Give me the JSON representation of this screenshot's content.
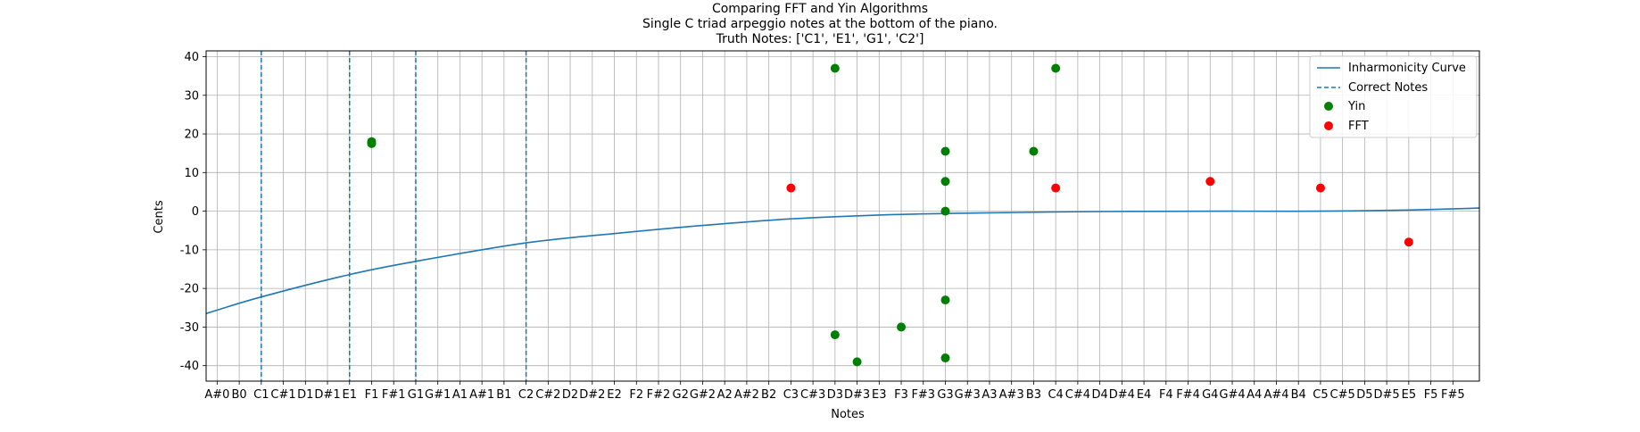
{
  "chart_data": {
    "type": "scatter",
    "title_lines": [
      "Comparing FFT and Yin Algorithms",
      "Single C triad arpeggio notes at the bottom of the piano.",
      "Truth Notes: ['C1', 'E1', 'G1', 'C2']"
    ],
    "xlabel": "Notes",
    "ylabel": "Cents",
    "xlim": [
      -0.5,
      57.2
    ],
    "ylim": [
      -44,
      41.5
    ],
    "grid": true,
    "legend_position": "upper right",
    "x_tick_labels": [
      "A#0",
      "B0",
      "C1",
      "C#1",
      "D1",
      "D#1",
      "E1",
      "F1",
      "F#1",
      "G1",
      "G#1",
      "A1",
      "A#1",
      "B1",
      "C2",
      "C#2",
      "D2",
      "D#2",
      "E2",
      "F2",
      "F#2",
      "G2",
      "G#2",
      "A2",
      "A#2",
      "B2",
      "C3",
      "C#3",
      "D3",
      "D#3",
      "E3",
      "F3",
      "F#3",
      "G3",
      "G#3",
      "A3",
      "A#3",
      "B3",
      "C4",
      "C#4",
      "D4",
      "D#4",
      "E4",
      "F4",
      "F#4",
      "G4",
      "G#4",
      "A4",
      "A#4",
      "B4",
      "C5",
      "C#5",
      "D5",
      "D#5",
      "E5",
      "F5",
      "F#5"
    ],
    "y_ticks": [
      -40,
      -30,
      -20,
      -10,
      0,
      10,
      20,
      30,
      40
    ],
    "inharmonicity_curve": {
      "name": "Inharmonicity Curve",
      "color": "#1f77b4",
      "x": [
        -0.5,
        2,
        6,
        9,
        14,
        18,
        22,
        26,
        30,
        34,
        40,
        46,
        50,
        54,
        57.2
      ],
      "y": [
        -26.5,
        -22.2,
        -16.4,
        -13.0,
        -8.2,
        -5.8,
        -3.7,
        -2.0,
        -1.0,
        -0.5,
        -0.1,
        0.0,
        0.0,
        0.3,
        0.8
      ]
    },
    "correct_notes": {
      "name": "Correct Notes",
      "color": "#1f77b4",
      "x": [
        2,
        6,
        9,
        14
      ]
    },
    "series": [
      {
        "name": "Yin",
        "color": "#008000",
        "points": [
          {
            "x": 7,
            "y": 18
          },
          {
            "x": 7,
            "y": 17.5
          },
          {
            "x": 28,
            "y": 37
          },
          {
            "x": 28,
            "y": -32
          },
          {
            "x": 29,
            "y": -39
          },
          {
            "x": 31,
            "y": -30
          },
          {
            "x": 33,
            "y": 15.5
          },
          {
            "x": 33,
            "y": 7.7
          },
          {
            "x": 33,
            "y": 0
          },
          {
            "x": 33,
            "y": -23
          },
          {
            "x": 33,
            "y": -38
          },
          {
            "x": 37,
            "y": 15.5
          },
          {
            "x": 38,
            "y": 37
          }
        ]
      },
      {
        "name": "FFT",
        "color": "#ff0000",
        "points": [
          {
            "x": 26,
            "y": 6
          },
          {
            "x": 38,
            "y": 6
          },
          {
            "x": 45,
            "y": 7.7
          },
          {
            "x": 50,
            "y": 6
          },
          {
            "x": 54,
            "y": -8
          }
        ]
      }
    ]
  }
}
